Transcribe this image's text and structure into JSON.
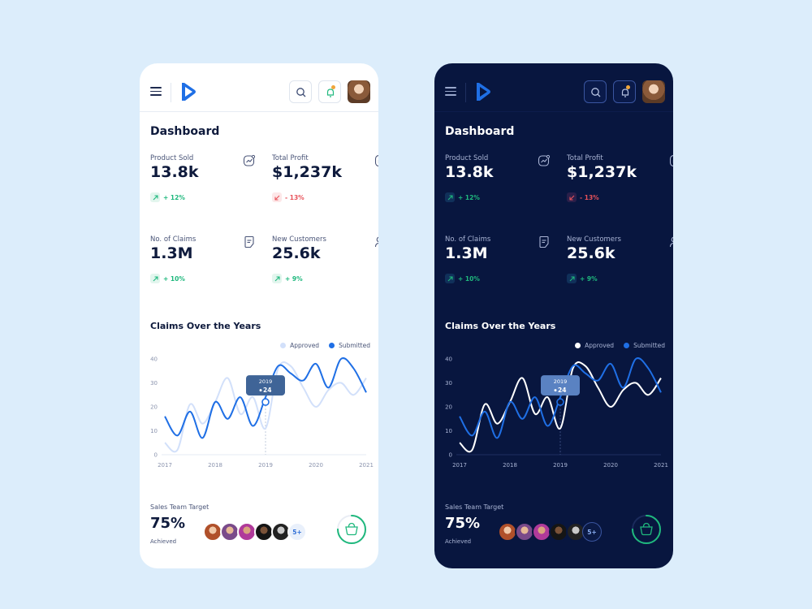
{
  "themes": [
    "light",
    "dark"
  ],
  "header": {
    "menu_icon": "hamburger-icon",
    "logo_icon": "d-logo-icon",
    "search_icon": "search-icon",
    "notification_icon": "bell-icon"
  },
  "page_title": "Dashboard",
  "stats": [
    {
      "label": "Product Sold",
      "value": "13.8k",
      "trend": "+ 12%",
      "direction": "up",
      "icon": "trend-chart-icon"
    },
    {
      "label": "Total Profit",
      "value": "$1,237k",
      "trend": "- 13%",
      "direction": "down",
      "icon": "bar-chart-icon"
    },
    {
      "label": "No. of Claims",
      "value": "1.3M",
      "trend": "+ 10%",
      "direction": "up",
      "icon": "document-icon"
    },
    {
      "label": "New Customers",
      "value": "25.6k",
      "trend": "+ 9%",
      "direction": "up",
      "icon": "users-icon"
    }
  ],
  "claims": {
    "title": "Claims Over the Years",
    "legend": {
      "approved": "Approved",
      "submitted": "Submitted"
    },
    "tooltip": {
      "year": "2019",
      "value": "24"
    }
  },
  "chart_data": {
    "type": "line",
    "title": "Claims Over the Years",
    "x": [
      2017,
      2017.25,
      2017.5,
      2017.75,
      2018,
      2018.25,
      2018.5,
      2018.75,
      2019,
      2019.25,
      2019.5,
      2019.75,
      2020,
      2020.25,
      2020.5,
      2020.75,
      2021
    ],
    "x_tick_labels": [
      "2017",
      "2018",
      "2019",
      "2020",
      "2021"
    ],
    "y_ticks": [
      0,
      10,
      20,
      30,
      40
    ],
    "ylim": [
      0,
      40
    ],
    "series": [
      {
        "name": "Approved",
        "values": [
          5,
          2,
          21,
          13,
          22,
          32,
          17,
          24,
          11,
          36,
          37,
          28,
          20,
          27,
          30,
          25,
          32
        ]
      },
      {
        "name": "Submitted",
        "values": [
          16,
          8,
          18,
          7,
          22,
          15,
          24,
          12,
          24,
          37,
          34,
          31,
          38,
          28,
          40,
          36,
          26
        ]
      }
    ],
    "colors": {
      "approved_light": "#d2e0fa",
      "approved_dark": "#ffffff",
      "submitted": "#1f6fe5"
    },
    "grid": false,
    "legend_position": "top-right"
  },
  "sales": {
    "label": "Sales Team Target",
    "value": "75%",
    "sub": "Achieved",
    "more_count": "5+",
    "progress_percent": 75,
    "ring_icon": "basket-icon"
  },
  "colors": {
    "accent": "#1f6fe5",
    "positive": "#1fb87d",
    "negative": "#e8525a",
    "dark_background": "#08163f"
  }
}
